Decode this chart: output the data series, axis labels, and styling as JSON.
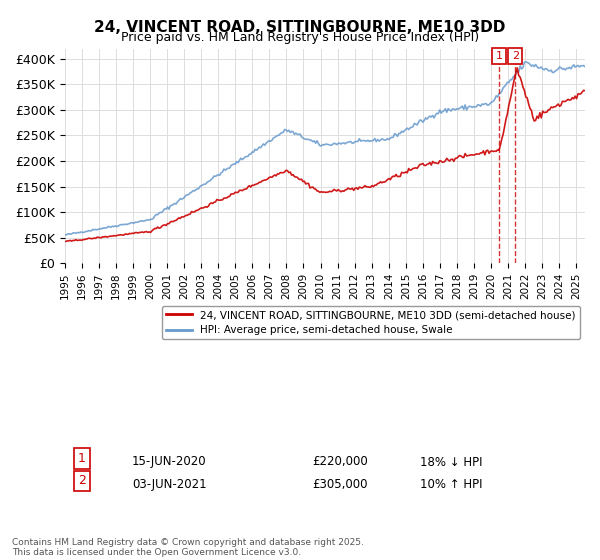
{
  "title": "24, VINCENT ROAD, SITTINGBOURNE, ME10 3DD",
  "subtitle": "Price paid vs. HM Land Registry's House Price Index (HPI)",
  "legend_line1": "24, VINCENT ROAD, SITTINGBOURNE, ME10 3DD (semi-detached house)",
  "legend_line2": "HPI: Average price, semi-detached house, Swale",
  "footer": "Contains HM Land Registry data © Crown copyright and database right 2025.\nThis data is licensed under the Open Government Licence v3.0.",
  "transactions": [
    {
      "label": "1",
      "date": "15-JUN-2020",
      "price": "£220,000",
      "hpi_note": "18% ↓ HPI",
      "year": 2020.46
    },
    {
      "label": "2",
      "date": "03-JUN-2021",
      "price": "£305,000",
      "hpi_note": "10% ↑ HPI",
      "year": 2021.42
    }
  ],
  "color_red": "#cc0000",
  "color_blue": "#6699cc",
  "color_dashed": "#cc0000",
  "ylim": [
    0,
    420000
  ],
  "yticks": [
    0,
    50000,
    100000,
    150000,
    200000,
    250000,
    300000,
    350000,
    400000
  ],
  "ytick_labels": [
    "£0",
    "£50K",
    "£100K",
    "£150K",
    "£200K",
    "£250K",
    "£300K",
    "£350K",
    "£400K"
  ],
  "xstart": 1995,
  "xend": 2025
}
